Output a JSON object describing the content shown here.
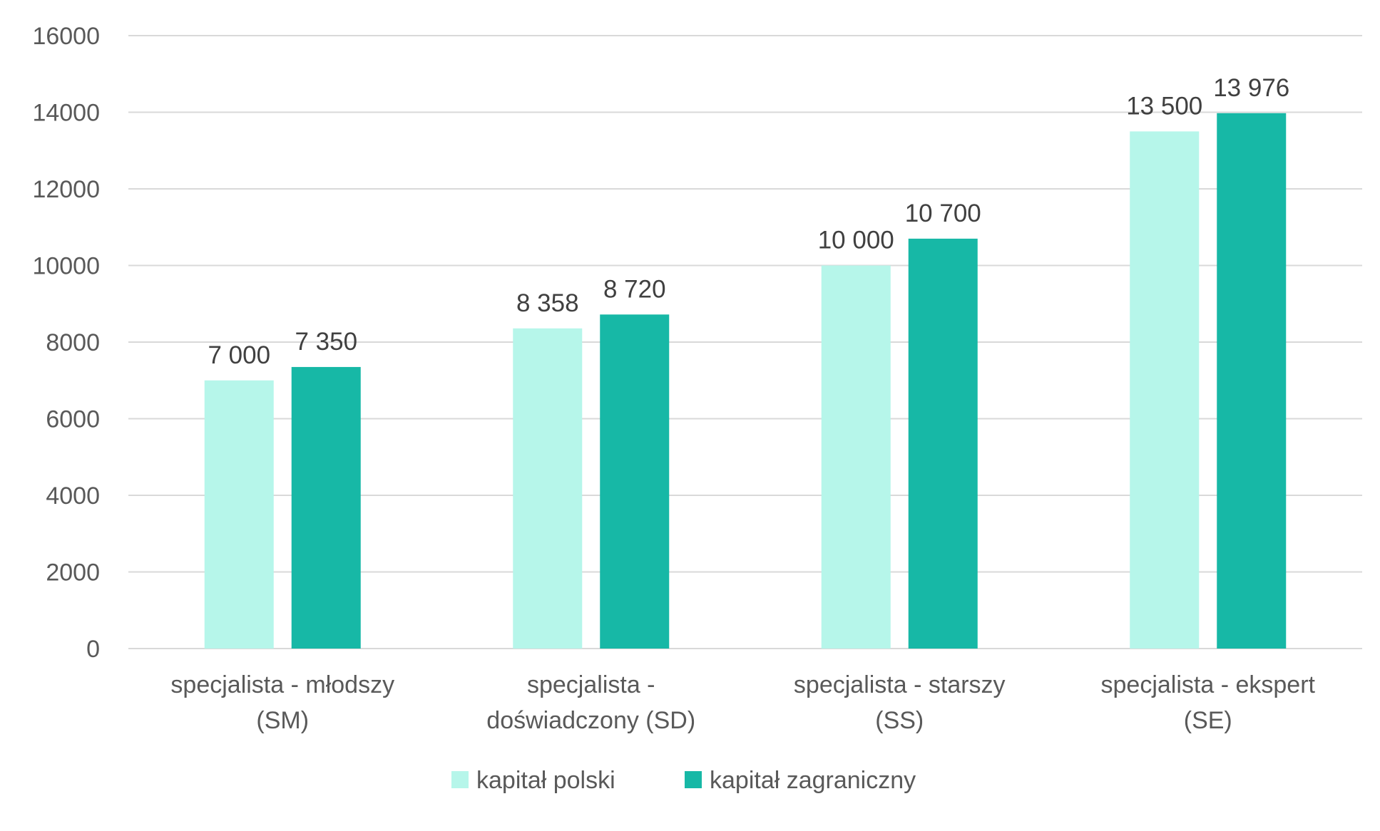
{
  "chart_data": {
    "type": "bar",
    "title": "",
    "xlabel": "",
    "ylabel": "",
    "ylim": [
      0,
      16000
    ],
    "yticks": [
      0,
      2000,
      4000,
      6000,
      8000,
      10000,
      12000,
      14000,
      16000
    ],
    "ytick_labels": [
      "0",
      "2000",
      "4000",
      "6000",
      "8000",
      "10000",
      "12000",
      "14000",
      "16000"
    ],
    "grid": true,
    "legend_position": "bottom",
    "categories": [
      [
        "specjalista - młodszy",
        "(SM)"
      ],
      [
        "specjalista -",
        "doświadczony (SD)"
      ],
      [
        "specjalista - starszy",
        "(SS)"
      ],
      [
        "specjalista - ekspert",
        "(SE)"
      ]
    ],
    "series": [
      {
        "name": "kapitał polski",
        "color": "#b6f6ea",
        "values": [
          7000,
          8358,
          10000,
          13500
        ],
        "labels": [
          "7 000",
          "8 358",
          "10 000",
          "13 500"
        ]
      },
      {
        "name": "kapitał zagraniczny",
        "color": "#17b8a6",
        "values": [
          7350,
          8720,
          10700,
          13976
        ],
        "labels": [
          "7 350",
          "8 720",
          "10 700",
          "13 976"
        ]
      }
    ]
  }
}
